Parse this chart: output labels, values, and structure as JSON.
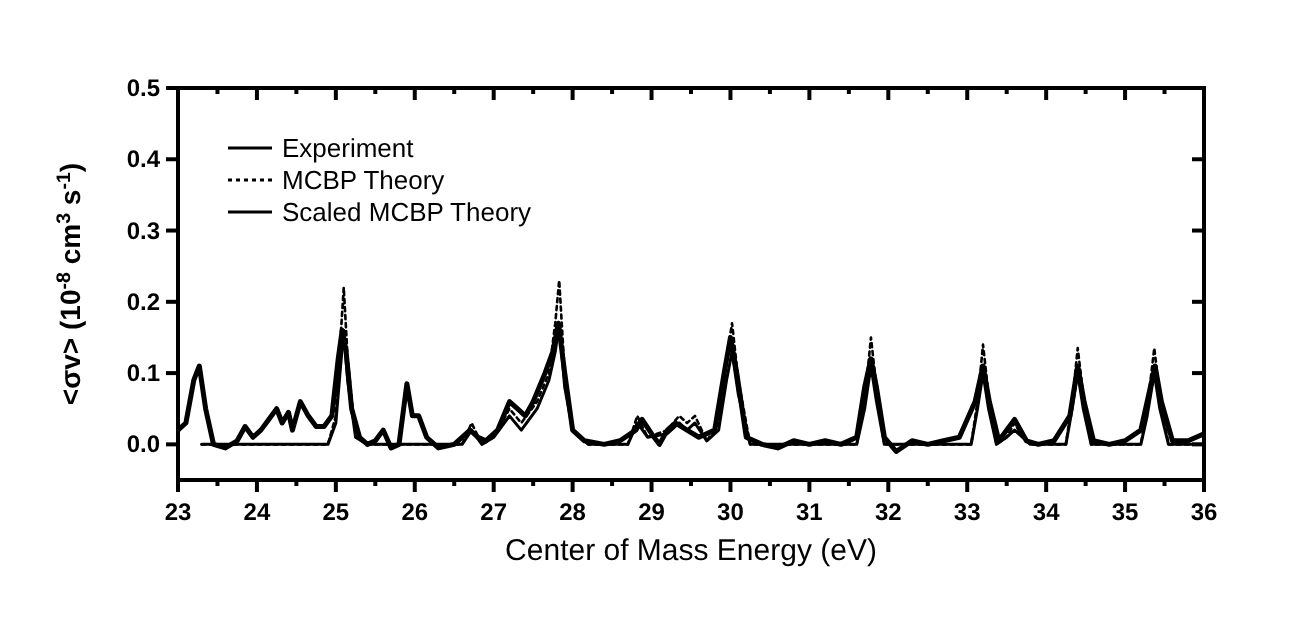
{
  "chart_data": {
    "type": "line",
    "xlabel": "Center of Mass Energy (eV)",
    "ylabel": "<σv> (10$^{-8}$ cm$^{3}$ s$^{-1}$)",
    "xlim": [
      23,
      36
    ],
    "ylim": [
      -0.05,
      0.5
    ],
    "xticks": [
      23,
      {
        "value": 23.5,
        "label": null
      },
      24,
      {
        "value": 24.5,
        "label": null
      },
      25,
      {
        "value": 25.5,
        "label": null
      },
      26,
      {
        "value": 26.5,
        "label": null
      },
      27,
      {
        "value": 27.5,
        "label": null
      },
      28,
      {
        "value": 28.5,
        "label": null
      },
      29,
      {
        "value": 29.5,
        "label": null
      },
      30,
      {
        "value": 30.5,
        "label": null
      },
      31,
      {
        "value": 31.5,
        "label": null
      },
      32,
      {
        "value": 32.5,
        "label": null
      },
      33,
      {
        "value": 33.5,
        "label": null
      },
      34,
      {
        "value": 34.5,
        "label": null
      },
      35,
      {
        "value": 35.5,
        "label": null
      },
      36
    ],
    "yticks": [
      {
        "value": 0,
        "label": "0.0"
      },
      0.1,
      0.2,
      0.3,
      0.4,
      0.5
    ],
    "grid": false,
    "legend": "top left",
    "marker": "none",
    "series": [
      {
        "name": "Experiment",
        "color": "#000000",
        "line_style": "solid",
        "x": [
          23.0,
          23.1,
          23.2,
          23.27,
          23.35,
          23.45,
          23.6,
          23.75,
          23.85,
          23.95,
          24.05,
          24.15,
          24.25,
          24.32,
          24.4,
          24.45,
          24.55,
          24.65,
          24.75,
          24.85,
          24.95,
          25.03,
          25.08,
          25.13,
          25.2,
          25.3,
          25.4,
          25.5,
          25.6,
          25.7,
          25.8,
          25.9,
          25.97,
          26.05,
          26.15,
          26.3,
          26.5,
          26.7,
          26.8,
          26.9,
          27.05,
          27.2,
          27.3,
          27.4,
          27.5,
          27.65,
          27.75,
          27.82,
          27.9,
          28.0,
          28.15,
          28.4,
          28.6,
          28.8,
          28.88,
          29.0,
          29.1,
          29.2,
          29.3,
          29.45,
          29.6,
          29.8,
          29.92,
          30.0,
          30.08,
          30.2,
          30.4,
          30.6,
          30.8,
          31.0,
          31.2,
          31.4,
          31.6,
          31.7,
          31.78,
          31.85,
          31.95,
          32.1,
          32.3,
          32.5,
          32.7,
          32.9,
          33.1,
          33.2,
          33.28,
          33.4,
          33.6,
          33.75,
          33.9,
          34.1,
          34.3,
          34.4,
          34.48,
          34.6,
          34.8,
          35.0,
          35.2,
          35.32,
          35.38,
          35.46,
          35.6,
          35.8,
          36.0
        ],
        "values": [
          0.02,
          0.03,
          0.09,
          0.11,
          0.05,
          0.0,
          -0.005,
          0.005,
          0.025,
          0.01,
          0.02,
          0.035,
          0.05,
          0.03,
          0.045,
          0.02,
          0.06,
          0.04,
          0.025,
          0.025,
          0.04,
          0.12,
          0.16,
          0.13,
          0.05,
          0.01,
          0.0,
          0.005,
          0.02,
          -0.005,
          0.0,
          0.085,
          0.04,
          0.04,
          0.01,
          -0.005,
          0.0,
          0.02,
          0.01,
          0.005,
          0.02,
          0.06,
          0.05,
          0.04,
          0.06,
          0.1,
          0.13,
          0.17,
          0.1,
          0.02,
          0.005,
          0.0,
          0.005,
          0.02,
          0.035,
          0.015,
          0.0,
          0.02,
          0.03,
          0.02,
          0.01,
          0.02,
          0.1,
          0.15,
          0.1,
          0.01,
          0.0,
          -0.005,
          0.005,
          0.0,
          0.005,
          0.0,
          0.01,
          0.08,
          0.12,
          0.08,
          0.01,
          -0.01,
          0.005,
          0.0,
          0.005,
          0.01,
          0.06,
          0.11,
          0.06,
          0.005,
          0.035,
          0.005,
          0.0,
          0.005,
          0.04,
          0.11,
          0.06,
          0.005,
          0.0,
          0.005,
          0.02,
          0.08,
          0.11,
          0.06,
          0.005,
          0.005,
          0.015
        ]
      },
      {
        "name": "MCBP Theory",
        "color": "#000000",
        "line_style": "dotted",
        "x": [
          23.3,
          24.9,
          25.0,
          25.06,
          25.1,
          25.15,
          25.25,
          25.4,
          26.6,
          26.72,
          26.85,
          27.0,
          27.2,
          27.35,
          27.55,
          27.7,
          27.78,
          27.83,
          27.9,
          28.0,
          28.2,
          28.7,
          28.82,
          28.95,
          29.2,
          29.35,
          29.45,
          29.55,
          29.7,
          29.85,
          29.95,
          30.02,
          30.1,
          30.25,
          31.6,
          31.7,
          31.78,
          31.85,
          31.95,
          33.05,
          33.13,
          33.2,
          33.27,
          33.37,
          33.5,
          33.6,
          33.7,
          33.8,
          34.25,
          34.33,
          34.4,
          34.47,
          34.57,
          35.2,
          35.28,
          35.37,
          35.44,
          35.55,
          36.0
        ],
        "values": [
          0,
          0,
          0.04,
          0.15,
          0.22,
          0.12,
          0.01,
          0,
          0,
          0.03,
          0,
          0.01,
          0.05,
          0.03,
          0.06,
          0.1,
          0.17,
          0.23,
          0.1,
          0.02,
          0,
          0,
          0.04,
          0.01,
          0.02,
          0.04,
          0.03,
          0.04,
          0.005,
          0.03,
          0.12,
          0.17,
          0.09,
          0,
          0,
          0.06,
          0.15,
          0.08,
          0,
          0,
          0.06,
          0.14,
          0.07,
          0,
          0.01,
          0.03,
          0.01,
          0,
          0,
          0.06,
          0.135,
          0.07,
          0,
          0,
          0.05,
          0.135,
          0.07,
          0,
          0
        ]
      },
      {
        "name": "Scaled MCBP Theory",
        "color": "#000000",
        "line_style": "solid",
        "x": [
          23.3,
          24.9,
          25.0,
          25.06,
          25.1,
          25.15,
          25.25,
          25.4,
          26.6,
          26.72,
          26.85,
          27.0,
          27.2,
          27.35,
          27.55,
          27.7,
          27.78,
          27.83,
          27.9,
          28.0,
          28.2,
          28.7,
          28.82,
          28.95,
          29.2,
          29.35,
          29.45,
          29.55,
          29.7,
          29.85,
          29.95,
          30.02,
          30.1,
          30.25,
          31.6,
          31.7,
          31.78,
          31.85,
          31.95,
          33.05,
          33.13,
          33.2,
          33.27,
          33.37,
          33.5,
          33.6,
          33.7,
          33.8,
          34.25,
          34.33,
          34.4,
          34.47,
          34.57,
          35.2,
          35.28,
          35.37,
          35.44,
          35.55,
          36.0
        ],
        "values": [
          0,
          0,
          0.03,
          0.11,
          0.16,
          0.09,
          0.01,
          0,
          0,
          0.02,
          0,
          0.01,
          0.04,
          0.02,
          0.05,
          0.09,
          0.13,
          0.17,
          0.08,
          0.02,
          0,
          0,
          0.03,
          0.01,
          0.015,
          0.03,
          0.02,
          0.03,
          0.005,
          0.02,
          0.09,
          0.13,
          0.07,
          0,
          0,
          0.05,
          0.11,
          0.06,
          0,
          0,
          0.05,
          0.1,
          0.05,
          0,
          0.01,
          0.02,
          0.01,
          0,
          0,
          0.05,
          0.1,
          0.05,
          0,
          0,
          0.04,
          0.1,
          0.05,
          0,
          0
        ]
      }
    ]
  }
}
